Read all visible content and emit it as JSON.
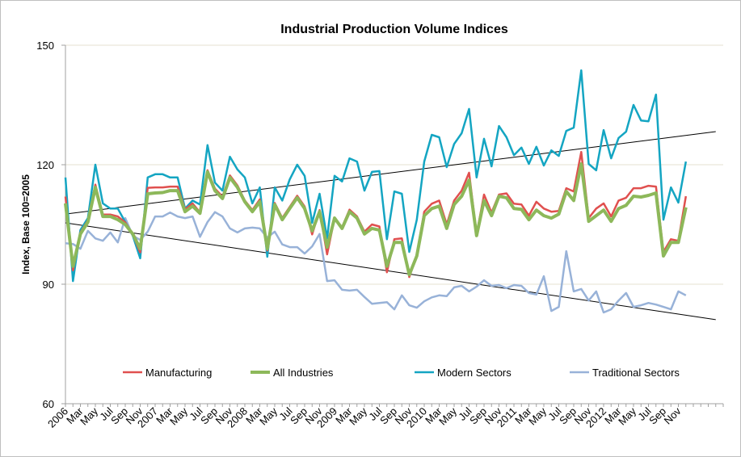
{
  "chart_data": {
    "type": "line",
    "title": "Industrial Production Volume Indices",
    "ylabel": "Index, Base 100=2005",
    "xlabel": "",
    "ylim": [
      60,
      150
    ],
    "y_ticks": [
      "60",
      "90",
      "120",
      "150"
    ],
    "grid": "horizontal",
    "legend_position": "bottom-inside",
    "x_labels": [
      "2006",
      "Mar",
      "May",
      "Jul",
      "Sep",
      "Nov",
      "2007",
      "Mar",
      "May",
      "Jul",
      "Sep",
      "Nov",
      "2008",
      "Mar",
      "May",
      "Jul",
      "Sep",
      "Nov",
      "2009",
      "Mar",
      "May",
      "Jul",
      "Sep",
      "Nov",
      "2010",
      "Mar",
      "May",
      "Jul",
      "Sep",
      "Nov",
      "2011",
      "Mar",
      "May",
      "Jul",
      "Sep",
      "Nov",
      "2012",
      "Mar",
      "May",
      "Jul",
      "Sep",
      "Nov"
    ],
    "x_label_interval_months": 2,
    "series": [
      {
        "name": "Manufacturing",
        "color": "#e0504f",
        "values": [
          112,
          93.5,
          103,
          106,
          115,
          107.5,
          107.5,
          107,
          105.5,
          102.5,
          98,
          114.2,
          114.3,
          114.3,
          114.5,
          114.5,
          108.8,
          110.3,
          108,
          118.6,
          114,
          112,
          117.3,
          114.8,
          111,
          108.6,
          111.3,
          98.5,
          110.4,
          106.6,
          109.4,
          112.2,
          109.5,
          102.5,
          108.6,
          97.5,
          106.6,
          104.3,
          108.7,
          107,
          103.2,
          105,
          104.5,
          93,
          101.3,
          101.5,
          91.8,
          97.4,
          108.2,
          110.2,
          111,
          105,
          111,
          113.5,
          118,
          102.5,
          112.5,
          108,
          112.5,
          112.8,
          110.2,
          110,
          107.2,
          110.7,
          109,
          108.2,
          108.4,
          114.1,
          113.3,
          123.2,
          106.6,
          109,
          110.3,
          107,
          111,
          111.7,
          114.1,
          114.1,
          114.7,
          114.5,
          98.1,
          101.3,
          100.9,
          112.1
        ]
      },
      {
        "name": "All Industries",
        "color": "#8db85a",
        "values": [
          110.3,
          94.5,
          102.6,
          105.6,
          114.3,
          107,
          107,
          106.2,
          105,
          102.6,
          98.9,
          112.7,
          112.9,
          113,
          113.5,
          113.5,
          108.2,
          109.6,
          107.8,
          118.2,
          113.5,
          111.5,
          116.8,
          114.3,
          110.7,
          108.2,
          110.7,
          98.9,
          110,
          106.2,
          109,
          111.7,
          109,
          103.4,
          108.2,
          99.3,
          106.6,
          104,
          108.2,
          106.6,
          102.6,
          104,
          103.6,
          94.5,
          100.5,
          100.5,
          92.4,
          97.1,
          107.2,
          109,
          109.6,
          104,
          110,
          112.1,
          116.1,
          102.2,
          111,
          107.2,
          112.1,
          111.7,
          109,
          108.8,
          106.2,
          108.6,
          107.2,
          106.6,
          107.6,
          113.3,
          111,
          120.2,
          105.8,
          107.2,
          108.6,
          105.8,
          109,
          109.8,
          112.1,
          111.9,
          112.3,
          112.9,
          97.1,
          100.5,
          100.5,
          109.3
        ]
      },
      {
        "name": "Modern Sectors",
        "color": "#14a5c2",
        "values": [
          116.8,
          90.8,
          103.6,
          106.6,
          120,
          110.3,
          109,
          109,
          105.6,
          102.2,
          96.5,
          116.8,
          117.6,
          117.6,
          116.8,
          116.8,
          109,
          111,
          110,
          124.9,
          115.5,
          113.5,
          122,
          118.8,
          116.8,
          110.3,
          114.3,
          96.9,
          114.3,
          111,
          116.3,
          120,
          117.2,
          105.4,
          112.7,
          101.5,
          117.2,
          115.8,
          121.6,
          120.8,
          113.5,
          118.2,
          118.4,
          101.3,
          113.3,
          112.7,
          98.1,
          106.2,
          120.8,
          127.5,
          126.9,
          119.4,
          125.2,
          127.9,
          134,
          116.8,
          126.5,
          119.6,
          129.7,
          126.9,
          122.4,
          124.3,
          120.2,
          124.5,
          119.8,
          123.6,
          122.2,
          128.5,
          129.3,
          143.7,
          120.2,
          118.6,
          128.7,
          121.6,
          126.7,
          128.3,
          135,
          131.1,
          130.9,
          137.6,
          106.2,
          114.3,
          110.5,
          120.8
        ]
      },
      {
        "name": "Traditional Sectors",
        "color": "#98b2d8",
        "values": [
          100.3,
          100.1,
          98.9,
          103.4,
          101.5,
          100.9,
          103,
          100.5,
          106.6,
          102.2,
          101.1,
          103.2,
          107,
          107,
          108,
          107,
          106.6,
          107,
          101.9,
          105.6,
          108.1,
          107,
          104,
          103,
          104,
          104.2,
          104,
          101.7,
          103.2,
          100,
          99.3,
          99.3,
          97.7,
          99.5,
          102.6,
          90.8,
          91,
          88.6,
          88.4,
          88.6,
          86.8,
          85.1,
          85.3,
          85.5,
          83.7,
          87.2,
          84.7,
          84.1,
          85.7,
          86.7,
          87.2,
          87,
          89.2,
          89.6,
          88.2,
          89.4,
          91,
          89.6,
          89.8,
          89,
          89.8,
          89.6,
          87.8,
          87.4,
          92,
          83.3,
          84.3,
          98.3,
          88.2,
          88.8,
          85.9,
          88.2,
          82.9,
          83.7,
          85.9,
          87.8,
          84.3,
          84.7,
          85.3,
          84.9,
          84.3,
          83.7,
          88.2,
          87.2
        ]
      }
    ],
    "trendlines": [
      {
        "of": "Modern Sectors",
        "type": "linear",
        "start_value": 107.6,
        "end_value": 128.3,
        "forecast_periods": 4,
        "color": "#000000"
      },
      {
        "of": "Traditional Sectors",
        "type": "linear",
        "start_value": 105.4,
        "end_value": 81.1,
        "forecast_periods": 4,
        "color": "#000000"
      }
    ]
  }
}
